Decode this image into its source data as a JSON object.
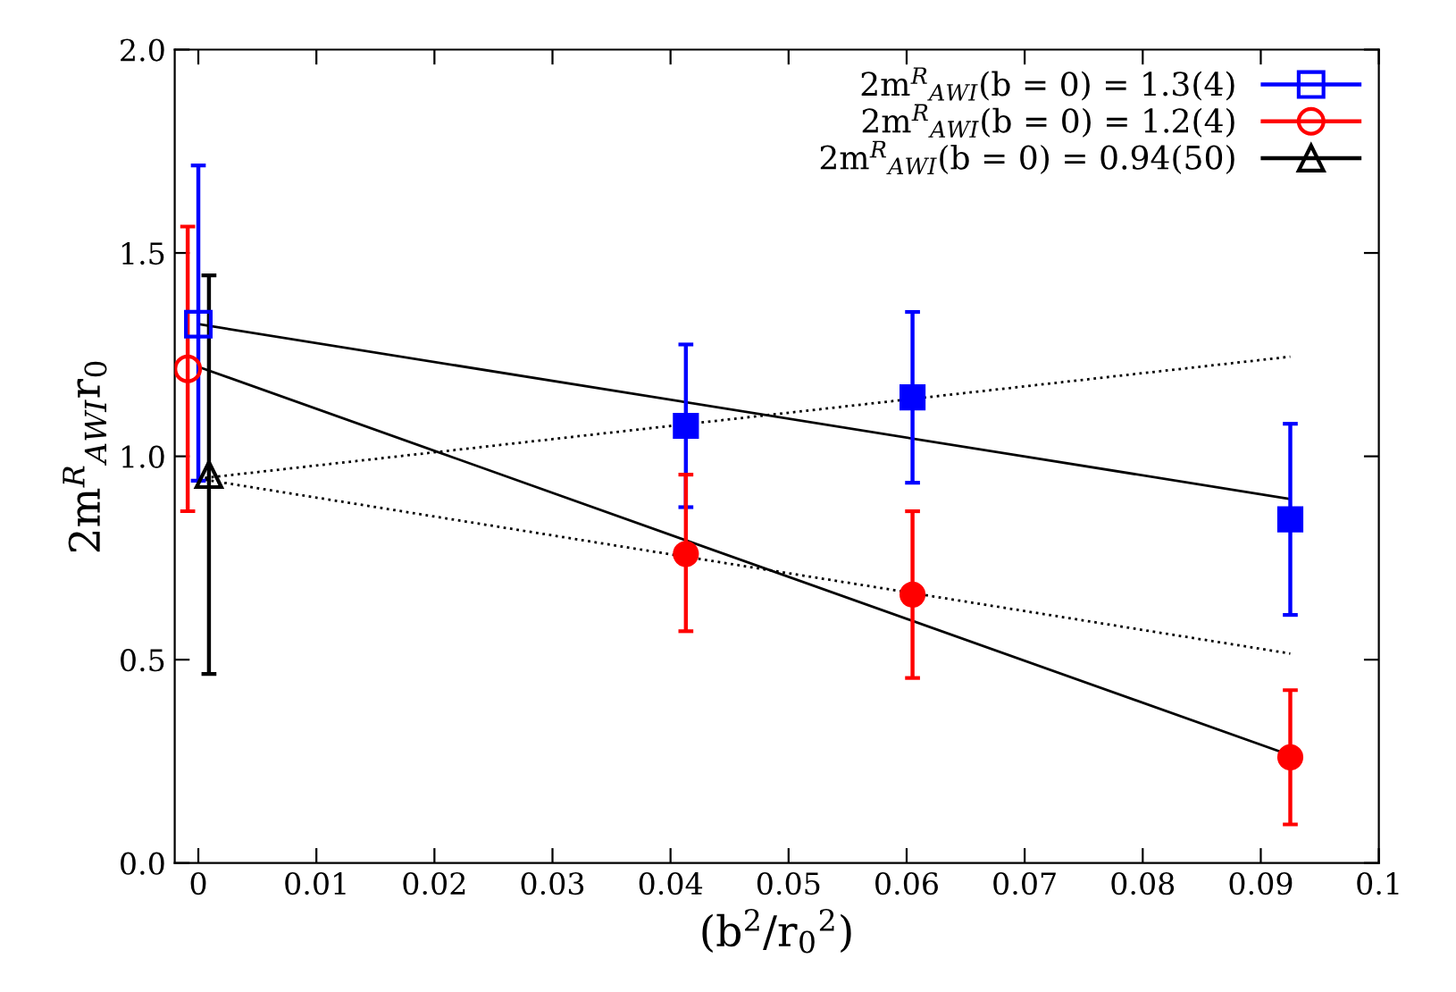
{
  "chart_data": {
    "type": "scatter",
    "xlabel": "(b$^{2}$/r$_{0}$$^{2}$)",
    "ylabel": "2m$^{R}$$_{AWI}$r$_{0}$",
    "xlim": [
      -0.002,
      0.1
    ],
    "ylim": [
      0,
      2.0
    ],
    "xticks": [
      0,
      0.01,
      0.02,
      0.03,
      0.04,
      0.05,
      0.06,
      0.07,
      0.08,
      0.09,
      0.1
    ],
    "yticks": [
      {
        "value": 0,
        "label": "0.0"
      },
      {
        "value": 0.5,
        "label": "0.5"
      },
      {
        "value": 1.0,
        "label": "1.0"
      },
      {
        "value": 1.5,
        "label": "1.5"
      },
      {
        "value": 2.0,
        "label": "2.0"
      }
    ],
    "grid": false,
    "legend": "top right",
    "series": [
      {
        "name": "2m$^{R}$$_{AWI}$(b = 0) = 1.3(4)",
        "color": "#0000ff",
        "marker": "square",
        "x": [
          0
        ],
        "values": [
          1.325
        ],
        "errors": [
          [
            0.94,
            1.715
          ]
        ]
      },
      {
        "name": "2m$^{R}$$_{AWI}$(b = 0) = 1.2(4)",
        "color": "#ff0000",
        "marker": "circle",
        "x": [
          -0.0009
        ],
        "values": [
          1.215
        ],
        "errors": [
          [
            0.865,
            1.565
          ]
        ]
      },
      {
        "name": "2m$^{R}$$_{AWI}$(b = 0) = 0.94(50)",
        "color": "#000000",
        "marker": "triangle",
        "x": [
          0.0009
        ],
        "values": [
          0.955
        ],
        "errors": [
          [
            0.465,
            1.445
          ]
        ]
      },
      {
        "color": "#0000ff",
        "marker": "square",
        "x": [
          0.0413,
          0.0605,
          0.0925
        ],
        "values": [
          1.075,
          1.145,
          0.845
        ],
        "errors": [
          [
            0.875,
            1.275
          ],
          [
            0.935,
            1.355
          ],
          [
            0.61,
            1.08
          ]
        ]
      },
      {
        "color": "#ff0000",
        "marker": "circle",
        "x": [
          0.0413,
          0.0605,
          0.0925
        ],
        "values": [
          0.76,
          0.66,
          0.26
        ],
        "errors": [
          [
            0.57,
            0.955
          ],
          [
            0.455,
            0.865
          ],
          [
            0.095,
            0.425
          ]
        ]
      },
      {
        "type": "line",
        "color": "#000000",
        "line_style": "solid",
        "x": [
          0,
          0.0925
        ],
        "values": [
          1.325,
          0.895
        ]
      },
      {
        "type": "line",
        "color": "#000000",
        "line_style": "solid",
        "x": [
          0,
          0.0925
        ],
        "values": [
          1.22,
          0.265
        ]
      },
      {
        "type": "line",
        "color": "#000000",
        "line_style": "dotted",
        "x": [
          0,
          0.0925
        ],
        "values": [
          0.945,
          1.245
        ]
      },
      {
        "type": "line",
        "color": "#000000",
        "line_style": "dotted",
        "x": [
          0,
          0.0925
        ],
        "values": [
          0.945,
          0.515
        ]
      }
    ]
  }
}
